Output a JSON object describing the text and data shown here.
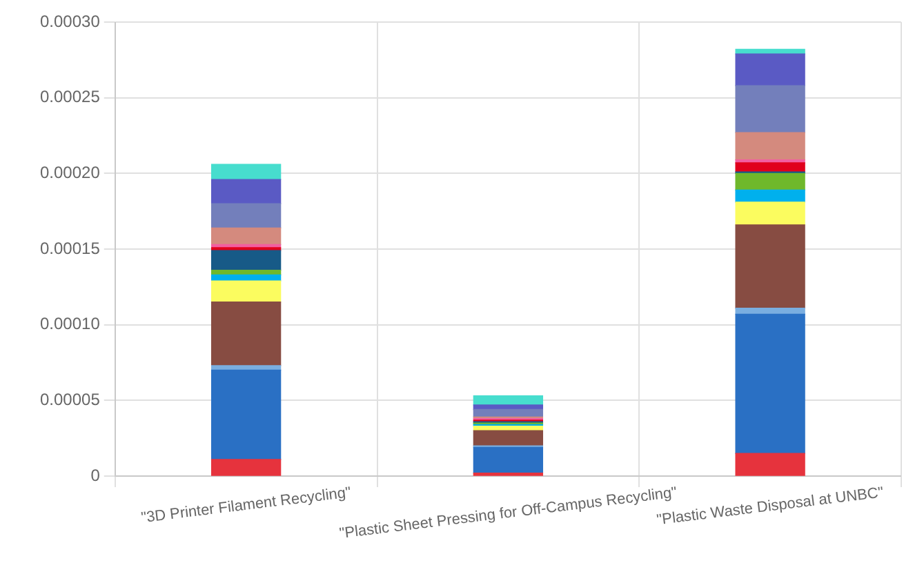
{
  "chart_data": {
    "type": "bar",
    "stacked": true,
    "grid": true,
    "legend": false,
    "categories": [
      "\"3D Printer Filament Recycling\"",
      "\"Plastic Sheet Pressing for Off-Campus Recycling\"",
      "\"Plastic Waste Disposal at UNBC\""
    ],
    "ylim": [
      0,
      0.0003
    ],
    "yticks": [
      {
        "value": 0,
        "label": "0"
      },
      {
        "value": 5e-05,
        "label": "0.00005"
      },
      {
        "value": 0.0001,
        "label": "0.00010"
      },
      {
        "value": 0.00015,
        "label": "0.00015"
      },
      {
        "value": 0.0002,
        "label": "0.00020"
      },
      {
        "value": 0.00025,
        "label": "0.00025"
      },
      {
        "value": 0.0003,
        "label": "0.00030"
      }
    ],
    "series": [
      {
        "color": "#e6333d",
        "values": [
          1.1e-05,
          2e-06,
          1.5e-05
        ]
      },
      {
        "color": "#2a70c4",
        "values": [
          5.9e-05,
          1.7e-05,
          9.2e-05
        ]
      },
      {
        "color": "#7aaee0",
        "values": [
          3e-06,
          1e-06,
          4e-06
        ]
      },
      {
        "color": "#874c42",
        "values": [
          4.2e-05,
          1e-05,
          5.5e-05
        ]
      },
      {
        "color": "#fbfc5f",
        "values": [
          1.4e-05,
          3e-06,
          1.5e-05
        ]
      },
      {
        "color": "#00b0ed",
        "values": [
          4e-06,
          1e-06,
          8e-06
        ]
      },
      {
        "color": "#6fb82b",
        "values": [
          3e-06,
          1e-06,
          1.1e-05
        ]
      },
      {
        "color": "#175a87",
        "values": [
          1.3e-05,
          1e-06,
          1e-06
        ]
      },
      {
        "color": "#e0001c",
        "values": [
          2e-06,
          1e-06,
          6e-06
        ]
      },
      {
        "color": "#f25fa0",
        "values": [
          2e-06,
          1e-06,
          2e-06
        ]
      },
      {
        "color": "#d48a7e",
        "values": [
          1.1e-05,
          1e-06,
          1.8e-05
        ]
      },
      {
        "color": "#737fbb",
        "values": [
          1.6e-05,
          5e-06,
          3.1e-05
        ]
      },
      {
        "color": "#5a5ac4",
        "values": [
          1.6e-05,
          3e-06,
          2.1e-05
        ]
      },
      {
        "color": "#47ddce",
        "values": [
          1e-05,
          6e-06,
          3e-06
        ]
      }
    ]
  }
}
